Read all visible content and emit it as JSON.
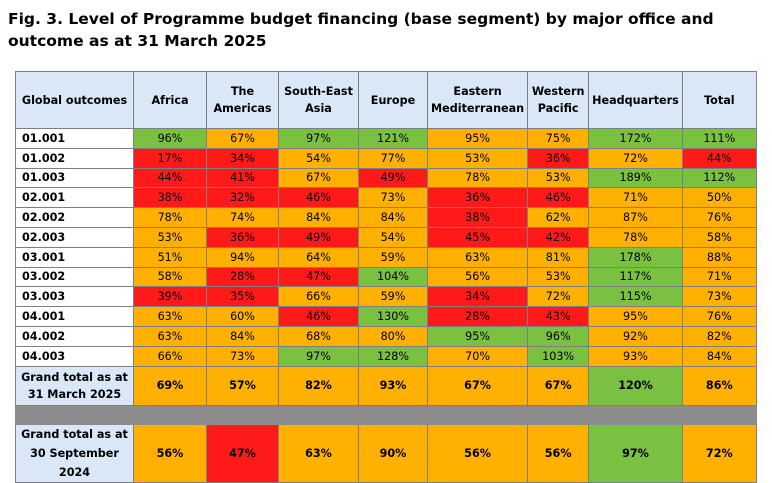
{
  "title": "Fig. 3. Level of Programme budget financing (base segment) by major office and outcome as at 31 March 2025",
  "colors": {
    "green": "#7ac142",
    "orange": "#ffb000",
    "red": "#ff1a1a",
    "header": "#d9e7f7"
  },
  "columns": [
    "Global outcomes",
    "Africa",
    "The Americas",
    "South-East Asia",
    "Europe",
    "Eastern Mediterranean",
    "Western Pacific",
    "Headquarters",
    "Total"
  ],
  "rows": [
    {
      "label": "01.001",
      "cells": [
        [
          "96%",
          "g"
        ],
        [
          "67%",
          "o"
        ],
        [
          "97%",
          "g"
        ],
        [
          "121%",
          "g"
        ],
        [
          "95%",
          "o"
        ],
        [
          "75%",
          "o"
        ],
        [
          "172%",
          "g"
        ],
        [
          "111%",
          "g"
        ]
      ]
    },
    {
      "label": "01.002",
      "cells": [
        [
          "17%",
          "r"
        ],
        [
          "34%",
          "r"
        ],
        [
          "54%",
          "o"
        ],
        [
          "77%",
          "o"
        ],
        [
          "53%",
          "o"
        ],
        [
          "36%",
          "r"
        ],
        [
          "72%",
          "o"
        ],
        [
          "44%",
          "r"
        ]
      ]
    },
    {
      "label": "01.003",
      "cells": [
        [
          "44%",
          "r"
        ],
        [
          "41%",
          "r"
        ],
        [
          "67%",
          "o"
        ],
        [
          "49%",
          "r"
        ],
        [
          "78%",
          "o"
        ],
        [
          "53%",
          "o"
        ],
        [
          "189%",
          "g"
        ],
        [
          "112%",
          "g"
        ]
      ]
    },
    {
      "label": "02.001",
      "cells": [
        [
          "38%",
          "r"
        ],
        [
          "32%",
          "r"
        ],
        [
          "46%",
          "r"
        ],
        [
          "73%",
          "o"
        ],
        [
          "36%",
          "r"
        ],
        [
          "46%",
          "r"
        ],
        [
          "71%",
          "o"
        ],
        [
          "50%",
          "o"
        ]
      ]
    },
    {
      "label": "02.002",
      "cells": [
        [
          "78%",
          "o"
        ],
        [
          "74%",
          "o"
        ],
        [
          "84%",
          "o"
        ],
        [
          "84%",
          "o"
        ],
        [
          "38%",
          "r"
        ],
        [
          "62%",
          "o"
        ],
        [
          "87%",
          "o"
        ],
        [
          "76%",
          "o"
        ]
      ]
    },
    {
      "label": "02.003",
      "cells": [
        [
          "53%",
          "o"
        ],
        [
          "36%",
          "r"
        ],
        [
          "49%",
          "r"
        ],
        [
          "54%",
          "o"
        ],
        [
          "45%",
          "r"
        ],
        [
          "42%",
          "r"
        ],
        [
          "78%",
          "o"
        ],
        [
          "58%",
          "o"
        ]
      ]
    },
    {
      "label": "03.001",
      "cells": [
        [
          "51%",
          "o"
        ],
        [
          "94%",
          "o"
        ],
        [
          "64%",
          "o"
        ],
        [
          "59%",
          "o"
        ],
        [
          "63%",
          "o"
        ],
        [
          "81%",
          "o"
        ],
        [
          "178%",
          "g"
        ],
        [
          "88%",
          "o"
        ]
      ]
    },
    {
      "label": "03.002",
      "cells": [
        [
          "58%",
          "o"
        ],
        [
          "28%",
          "r"
        ],
        [
          "47%",
          "r"
        ],
        [
          "104%",
          "g"
        ],
        [
          "56%",
          "o"
        ],
        [
          "53%",
          "o"
        ],
        [
          "117%",
          "g"
        ],
        [
          "71%",
          "o"
        ]
      ]
    },
    {
      "label": "03.003",
      "cells": [
        [
          "39%",
          "r"
        ],
        [
          "35%",
          "r"
        ],
        [
          "66%",
          "o"
        ],
        [
          "59%",
          "o"
        ],
        [
          "34%",
          "r"
        ],
        [
          "72%",
          "o"
        ],
        [
          "115%",
          "g"
        ],
        [
          "73%",
          "o"
        ]
      ]
    },
    {
      "label": "04.001",
      "cells": [
        [
          "63%",
          "o"
        ],
        [
          "60%",
          "o"
        ],
        [
          "46%",
          "r"
        ],
        [
          "130%",
          "g"
        ],
        [
          "28%",
          "r"
        ],
        [
          "43%",
          "r"
        ],
        [
          "95%",
          "o"
        ],
        [
          "76%",
          "o"
        ]
      ]
    },
    {
      "label": "04.002",
      "cells": [
        [
          "63%",
          "o"
        ],
        [
          "84%",
          "o"
        ],
        [
          "68%",
          "o"
        ],
        [
          "80%",
          "o"
        ],
        [
          "95%",
          "g"
        ],
        [
          "96%",
          "g"
        ],
        [
          "92%",
          "o"
        ],
        [
          "82%",
          "o"
        ]
      ]
    },
    {
      "label": "04.003",
      "cells": [
        [
          "66%",
          "o"
        ],
        [
          "73%",
          "o"
        ],
        [
          "97%",
          "g"
        ],
        [
          "128%",
          "g"
        ],
        [
          "70%",
          "o"
        ],
        [
          "103%",
          "g"
        ],
        [
          "93%",
          "o"
        ],
        [
          "84%",
          "o"
        ]
      ]
    }
  ],
  "grand_total_march": {
    "label": "Grand total as at 31 March 2025",
    "cells": [
      [
        "69%",
        "o"
      ],
      [
        "57%",
        "o"
      ],
      [
        "82%",
        "o"
      ],
      [
        "93%",
        "o"
      ],
      [
        "67%",
        "o"
      ],
      [
        "67%",
        "o"
      ],
      [
        "120%",
        "g"
      ],
      [
        "86%",
        "o"
      ]
    ]
  },
  "grand_total_sept": {
    "label": "Grand total as at 30 September 2024",
    "cells": [
      [
        "56%",
        "o"
      ],
      [
        "47%",
        "r"
      ],
      [
        "63%",
        "o"
      ],
      [
        "90%",
        "o"
      ],
      [
        "56%",
        "o"
      ],
      [
        "56%",
        "o"
      ],
      [
        "97%",
        "g"
      ],
      [
        "72%",
        "o"
      ]
    ]
  }
}
